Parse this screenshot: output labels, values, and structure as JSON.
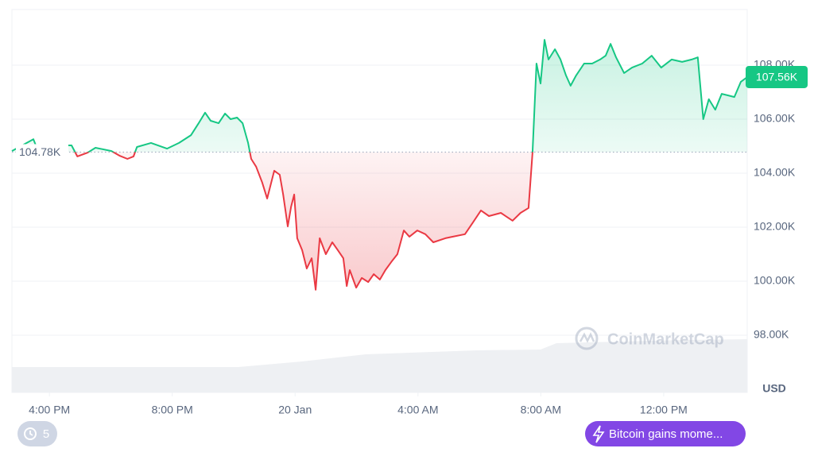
{
  "chart_data": {
    "type": "line",
    "x": [
      14.78,
      15.48,
      15.56,
      16.72,
      16.91,
      17.24,
      17.5,
      18.02,
      18.28,
      18.54,
      18.74,
      18.85,
      19.31,
      19.83,
      20.22,
      20.61,
      20.86,
      21.07,
      21.25,
      21.51,
      21.72,
      21.9,
      22.11,
      22.29,
      22.47,
      22.57,
      22.73,
      22.93,
      23.09,
      23.32,
      23.5,
      23.61,
      23.76,
      23.87,
      23.97,
      24.07,
      24.23,
      24.38,
      24.54,
      24.67,
      24.8,
      25.0,
      25.21,
      25.39,
      25.57,
      25.68,
      25.78,
      25.99,
      26.17,
      26.38,
      26.56,
      26.76,
      26.94,
      27.13,
      27.33,
      27.54,
      27.72,
      27.98,
      28.24,
      28.5,
      28.89,
      29.14,
      29.53,
      29.79,
      30.05,
      30.31,
      30.7,
      31.08,
      31.34,
      31.6,
      31.73,
      31.86,
      31.99,
      32.12,
      32.25,
      32.46,
      32.64,
      32.82,
      32.97,
      33.15,
      33.41,
      33.67,
      33.93,
      34.11,
      34.27,
      34.45,
      34.71,
      34.97,
      35.3,
      35.61,
      35.92,
      36.26,
      36.6,
      36.91,
      37.11,
      37.29,
      37.47,
      37.68,
      37.89,
      38.1,
      38.3,
      38.51,
      38.72
    ],
    "values": [
      104.82,
      105.26,
      105.03,
      105.03,
      104.62,
      104.76,
      104.94,
      104.82,
      104.65,
      104.53,
      104.62,
      104.97,
      105.12,
      104.91,
      105.12,
      105.41,
      105.85,
      106.24,
      105.94,
      105.85,
      106.21,
      106.0,
      106.06,
      105.85,
      105.12,
      104.53,
      104.24,
      103.65,
      103.06,
      104.09,
      103.94,
      103.21,
      102.03,
      102.76,
      103.21,
      101.59,
      101.15,
      100.47,
      100.85,
      99.68,
      101.59,
      101.0,
      101.44,
      101.15,
      100.85,
      99.82,
      100.41,
      99.76,
      100.12,
      99.97,
      100.26,
      100.06,
      100.41,
      100.71,
      101.0,
      101.88,
      101.65,
      101.88,
      101.74,
      101.44,
      101.59,
      101.65,
      101.74,
      102.18,
      102.62,
      102.41,
      102.53,
      102.24,
      102.53,
      102.71,
      104.76,
      108.06,
      107.32,
      108.94,
      108.21,
      108.59,
      108.21,
      107.62,
      107.24,
      107.62,
      108.06,
      108.06,
      108.21,
      108.35,
      108.79,
      108.29,
      107.71,
      107.91,
      108.06,
      108.35,
      107.91,
      108.21,
      108.12,
      108.21,
      108.29,
      106.0,
      106.74,
      106.35,
      106.94,
      106.88,
      106.82,
      107.38,
      107.56
    ],
    "color_up": "#16c784",
    "color_down": "#ea3943",
    "xlim": [
      14.78,
      38.72
    ],
    "xticks": [
      {
        "value": 16,
        "label": "4:00 PM"
      },
      {
        "value": 20,
        "label": "8:00 PM"
      },
      {
        "value": 24,
        "label": "20 Jan"
      },
      {
        "value": 28,
        "label": "4:00 AM"
      },
      {
        "value": 32,
        "label": "8:00 AM"
      },
      {
        "value": 36,
        "label": "12:00 PM"
      }
    ],
    "ylim": [
      95.88,
      110.06
    ],
    "yticks": [
      {
        "value": 98,
        "label": "98.00K"
      },
      {
        "value": 100,
        "label": "100.00K"
      },
      {
        "value": 102,
        "label": "102.00K"
      },
      {
        "value": 104,
        "label": "104.00K"
      },
      {
        "value": 106,
        "label": "106.00K"
      },
      {
        "value": 108,
        "label": "108.00K"
      }
    ],
    "grid": true,
    "baseline": {
      "value": 104.78,
      "label": "104.78K"
    },
    "current": {
      "value": 107.56,
      "label": "107.56K"
    },
    "unit_label": "USD",
    "watermark": "CoinMarketCap",
    "history_count": "5",
    "news_pill": "Bitcoin gains mome..."
  }
}
